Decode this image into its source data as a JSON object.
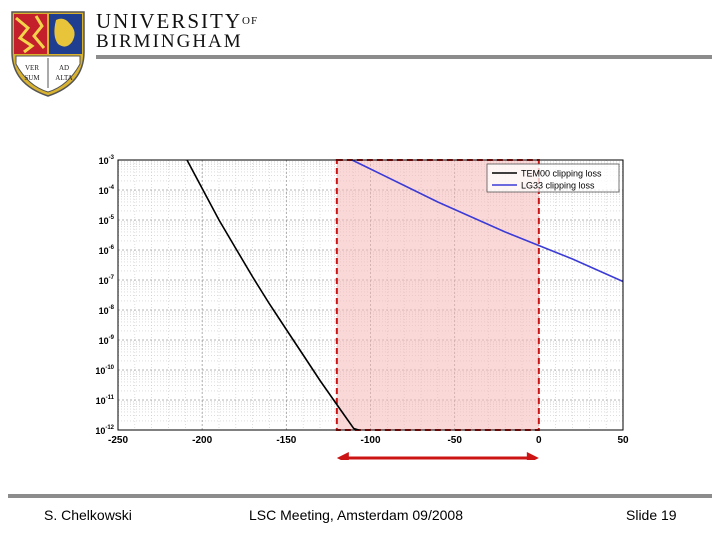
{
  "header": {
    "university_line1": "UNIVERSITY",
    "university_of": "OF",
    "university_line2": "BIRMINGHAM",
    "crest_lettering": [
      "VER",
      "AD",
      "SUM",
      "ALTA"
    ]
  },
  "footer": {
    "author": "S. Chelkowski",
    "event": "LSC Meeting, Amsterdam 09/2008",
    "slide": "Slide 19"
  },
  "colors": {
    "tem00": "#000000",
    "lg33": "#3b3bd6",
    "highlight_fill": "#f8b8b8",
    "highlight_border": "#cc1414",
    "arrow": "#cc1414",
    "rule": "#8c8c8c"
  },
  "chart_data": {
    "type": "line",
    "title": "",
    "xlabel": "",
    "ylabel": "",
    "xlim": [
      -250,
      50
    ],
    "ylim_exponent": [
      -12,
      -3
    ],
    "y_scale": "log",
    "grid": true,
    "x_ticks": [
      "-250",
      "-200",
      "-150",
      "-100",
      "-50",
      "0",
      "50"
    ],
    "y_ticks": [
      {
        "base": "10",
        "exp": "-12",
        "value": -12
      },
      {
        "base": "10",
        "exp": "-11",
        "value": -11
      },
      {
        "base": "10",
        "exp": "-10",
        "value": -10
      },
      {
        "base": "10",
        "exp": "-9",
        "value": -9
      },
      {
        "base": "10",
        "exp": "-8",
        "value": -8
      },
      {
        "base": "10",
        "exp": "-7",
        "value": -7
      },
      {
        "base": "10",
        "exp": "-6",
        "value": -6
      },
      {
        "base": "10",
        "exp": "-5",
        "value": -5
      },
      {
        "base": "10",
        "exp": "-4",
        "value": -4
      },
      {
        "base": "10",
        "exp": "-3",
        "value": -3
      }
    ],
    "legend_position": "top-right",
    "series": [
      {
        "name": "TEM00 clipping loss",
        "color": "#000000",
        "points": [
          [
            -209,
            -3.0
          ],
          [
            -200,
            -3.95
          ],
          [
            -190,
            -5.0
          ],
          [
            -180,
            -5.95
          ],
          [
            -170,
            -6.9
          ],
          [
            -160,
            -7.8
          ],
          [
            -150,
            -8.65
          ],
          [
            -140,
            -9.5
          ],
          [
            -130,
            -10.35
          ],
          [
            -120,
            -11.15
          ],
          [
            -110,
            -11.95
          ],
          [
            -107,
            -12.0
          ]
        ]
      },
      {
        "name": "LG33 clipping loss",
        "color": "#3b3bd6",
        "points": [
          [
            -111,
            -3.0
          ],
          [
            -100,
            -3.3
          ],
          [
            -80,
            -3.85
          ],
          [
            -60,
            -4.4
          ],
          [
            -40,
            -4.9
          ],
          [
            -20,
            -5.4
          ],
          [
            0,
            -5.85
          ],
          [
            20,
            -6.3
          ],
          [
            50,
            -7.05
          ]
        ]
      }
    ],
    "highlight": {
      "x_from": -120,
      "x_to": 0
    },
    "arrow": {
      "x_from": -120,
      "x_to": 0
    }
  }
}
